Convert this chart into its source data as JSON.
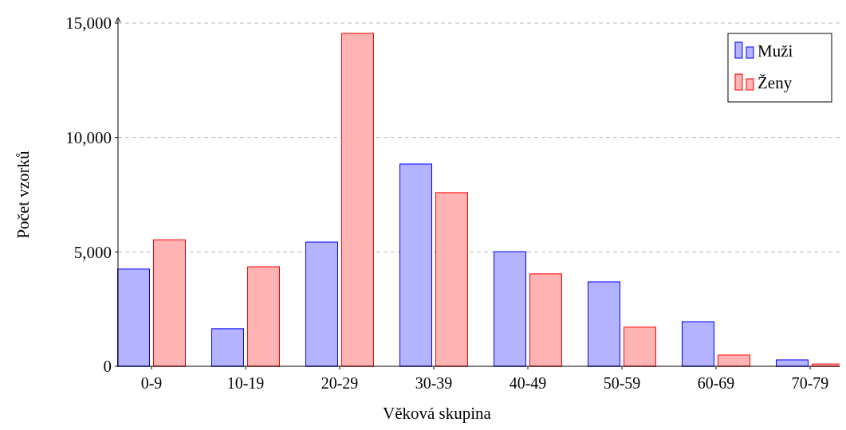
{
  "chart_data": {
    "type": "bar",
    "xlabel": "Věková skupina",
    "ylabel": "Počet vzorků",
    "categories": [
      "0-9",
      "10-19",
      "20-29",
      "30-39",
      "40-49",
      "50-59",
      "60-69",
      "70-79"
    ],
    "series": [
      {
        "name": "Muži",
        "color": "#b3b3ff",
        "values": [
          4250,
          1640,
          5430,
          8840,
          5010,
          3690,
          1950,
          280
        ]
      },
      {
        "name": "Ženy",
        "color": "#ffb3b3",
        "values": [
          5530,
          4350,
          14550,
          7590,
          4040,
          1710,
          490,
          100
        ]
      }
    ],
    "ylim": [
      0,
      15000
    ],
    "yticks": [
      0,
      {
        "value": 5000,
        "label": "5,000"
      },
      {
        "value": 10000,
        "label": "10,000"
      },
      {
        "value": 15000,
        "label": "15,000"
      }
    ],
    "grid": "y",
    "legend": "top right"
  }
}
